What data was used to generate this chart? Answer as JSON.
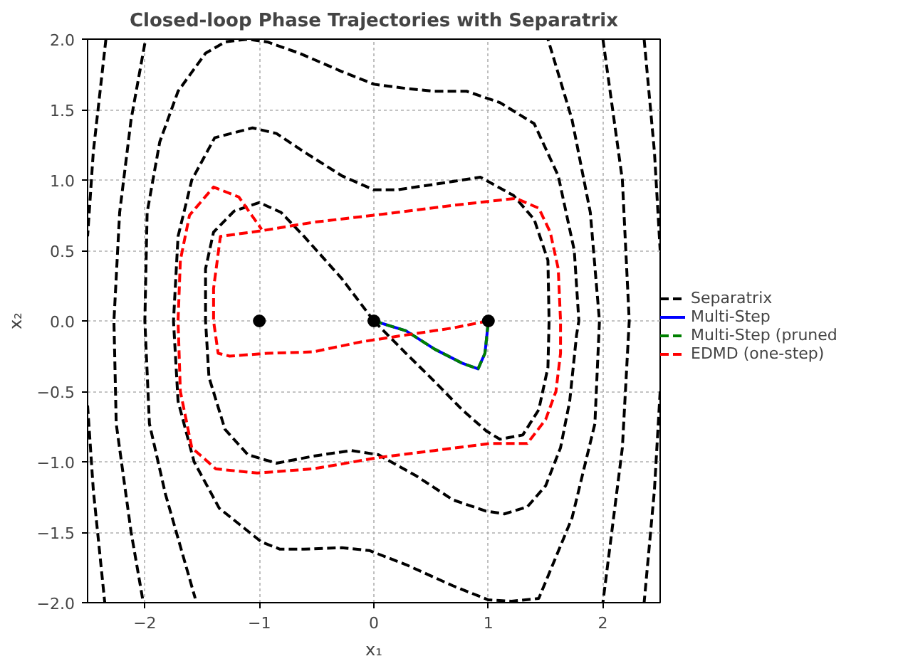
{
  "chart_data": {
    "type": "line",
    "title": "Closed-loop Phase Trajectories with Separatrix",
    "xlabel": "x₁",
    "ylabel": "x₂",
    "xlim": [
      -2.5,
      2.5
    ],
    "ylim": [
      -2.0,
      2.0
    ],
    "xticks": [
      {
        "value": -2,
        "label": "−2"
      },
      {
        "value": -1,
        "label": "−1"
      },
      0,
      1,
      2
    ],
    "yticks": [
      {
        "value": -2.0,
        "label": "−2.0"
      },
      {
        "value": -1.5,
        "label": "−1.5"
      },
      {
        "value": -1.0,
        "label": "−1.0"
      },
      {
        "value": -0.5,
        "label": "−0.5"
      },
      {
        "value": 0.0,
        "label": "0.0"
      },
      {
        "value": 0.5,
        "label": "0.5"
      },
      {
        "value": 1.0,
        "label": "1.0"
      },
      {
        "value": 1.5,
        "label": "1.5"
      },
      {
        "value": 2.0,
        "label": "2.0"
      }
    ],
    "grid": true,
    "legend": "right",
    "series": [
      {
        "name": "Separatrix",
        "line_style": "dashed",
        "color": "#000000",
        "x": [
          0,
          -0.28,
          -0.61,
          -0.81,
          -1.0,
          -1.22,
          -1.4,
          -1.47,
          -1.47,
          -1.44,
          -1.3,
          -1.1,
          -0.85,
          -0.53,
          -0.2,
          0.04,
          0.37,
          0.69,
          0.98,
          1.14,
          1.34,
          1.5,
          1.63,
          1.71,
          1.77,
          1.79,
          1.75,
          1.61,
          1.4,
          1.1,
          0.81,
          0.53,
          0.28,
          0,
          -0.28,
          -0.65,
          -0.93,
          -1.1,
          -1.3,
          -1.47,
          -1.71,
          -1.87,
          -1.98,
          -2.0,
          -1.96,
          -1.82,
          -1.56,
          null,
          0,
          0.28,
          0.53,
          0.77,
          0.98,
          1.1,
          1.3,
          1.44,
          1.52,
          1.53,
          1.52,
          1.4,
          1.22,
          0.93,
          0.53,
          0.2,
          0,
          -0.28,
          -0.61,
          -0.85,
          -1.06,
          -1.39,
          -1.59,
          -1.71,
          -1.75,
          -1.71,
          -1.57,
          -1.35,
          -0.98,
          -0.82,
          -0.61,
          -0.28,
          -0.04,
          0.28,
          0.69,
          1.0,
          1.2,
          1.44,
          1.73,
          1.93,
          1.97,
          1.89,
          1.73,
          1.52,
          null,
          2.0,
          2.17,
          2.23,
          2.17,
          2.0,
          null,
          2.36,
          2.45,
          2.5,
          null,
          2.5,
          2.45,
          2.36,
          null,
          -2.34,
          -2.45,
          -2.5,
          null,
          -2.5,
          -2.45,
          -2.35,
          null,
          -2.0,
          -2.12,
          -2.22,
          -2.27,
          -2.25,
          -2.12,
          -2.02
        ],
        "values": [
          0,
          0.3,
          0.6,
          0.77,
          0.84,
          0.78,
          0.63,
          0.37,
          0,
          -0.4,
          -0.77,
          -0.95,
          -1.01,
          -0.96,
          -0.92,
          -0.95,
          -1.1,
          -1.27,
          -1.35,
          -1.37,
          -1.32,
          -1.17,
          -0.9,
          -0.57,
          -0.1,
          0,
          0.5,
          1.03,
          1.4,
          1.55,
          1.63,
          1.63,
          1.65,
          1.68,
          1.77,
          1.9,
          1.98,
          2.0,
          1.98,
          1.9,
          1.63,
          1.27,
          0.77,
          0,
          -0.73,
          -1.23,
          -1.97,
          null,
          0,
          -0.23,
          -0.43,
          -0.63,
          -0.78,
          -0.84,
          -0.81,
          -0.63,
          -0.33,
          0,
          0.43,
          0.72,
          0.89,
          1.02,
          0.97,
          0.93,
          0.93,
          1.03,
          1.2,
          1.33,
          1.37,
          1.3,
          1.0,
          0.6,
          0,
          -0.57,
          -1.0,
          -1.33,
          -1.57,
          -1.62,
          -1.62,
          -1.61,
          -1.63,
          -1.73,
          -1.88,
          -1.98,
          -1.99,
          -1.97,
          -1.4,
          -0.73,
          0,
          0.77,
          1.43,
          2.0,
          null,
          2.0,
          1.0,
          0,
          -0.9,
          -2.0,
          null,
          2.0,
          1.2,
          0.5,
          null,
          -0.5,
          -1.2,
          -2.0,
          null,
          2.0,
          1.2,
          0.6,
          null,
          -0.6,
          -1.2,
          -2.0,
          null,
          1.97,
          1.43,
          0.77,
          0,
          -0.73,
          -1.5,
          -1.97
        ]
      },
      {
        "name": "Multi-Step",
        "line_style": "solid",
        "color": "#0000ff",
        "x": [
          0,
          0.28,
          0.53,
          0.77,
          0.91,
          0.97,
          1.0
        ],
        "values": [
          0,
          -0.07,
          -0.2,
          -0.3,
          -0.34,
          -0.23,
          0
        ]
      },
      {
        "name": "Multi-Step (pruned",
        "line_style": "dashed",
        "color": "#008000",
        "x": [
          0,
          0.28,
          0.53,
          0.77,
          0.91,
          0.97,
          1.0
        ],
        "values": [
          0,
          -0.07,
          -0.2,
          -0.3,
          -0.34,
          -0.23,
          0
        ]
      },
      {
        "name": "EDMD (one-step)",
        "line_style": "dashed",
        "color": "#ff0000",
        "x": [
          1.0,
          0.69,
          0.28,
          -0.12,
          -0.53,
          -0.93,
          -1.26,
          -1.36,
          -1.4,
          -1.4,
          -1.34,
          -0.98,
          -0.53,
          0,
          0.69,
          1.24,
          1.44,
          1.54,
          1.61,
          1.63,
          1.63,
          1.59,
          1.5,
          1.34,
          1.02,
          0.53,
          0.04,
          -0.53,
          -1.02,
          -1.38,
          -1.59,
          -1.69,
          -1.71,
          -1.69,
          -1.61,
          -1.4,
          -1.18,
          -0.98
        ],
        "values": [
          0,
          -0.05,
          -0.1,
          -0.15,
          -0.22,
          -0.23,
          -0.25,
          -0.23,
          0,
          0.23,
          0.6,
          0.64,
          0.7,
          0.75,
          0.82,
          0.87,
          0.8,
          0.63,
          0.37,
          0,
          -0.23,
          -0.5,
          -0.7,
          -0.87,
          -0.87,
          -0.92,
          -0.97,
          -1.05,
          -1.08,
          -1.05,
          -0.9,
          -0.5,
          0,
          0.43,
          0.75,
          0.95,
          0.88,
          0.65
        ]
      },
      {
        "type": "scatter",
        "marker": "circle",
        "color": "#000000",
        "x": [
          -1,
          0,
          1
        ],
        "values": [
          0,
          0,
          0
        ]
      }
    ]
  }
}
